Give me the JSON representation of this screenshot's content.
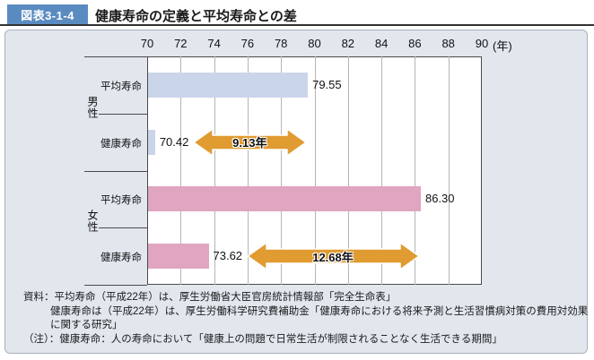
{
  "header": {
    "figure_label": "図表3-1-4",
    "title": "健康寿命の定義と平均寿命との差"
  },
  "colors": {
    "title_box_bg": "#5a8bc0",
    "header_rule": "#333333",
    "panel_bg": "#e2e7ee",
    "panel_border": "#a9b1bb",
    "plot_bg": "#ffffff",
    "plot_border": "#4a4a4a",
    "gridline": "#b5b5b5"
  },
  "chart_data": {
    "type": "bar",
    "orientation": "horizontal",
    "title": "健康寿命の定義と平均寿命との差",
    "axis": {
      "min": 70,
      "max": 90,
      "step": 2,
      "tick_labels": [
        "70",
        "72",
        "74",
        "76",
        "78",
        "80",
        "82",
        "84",
        "86",
        "88",
        "90"
      ],
      "unit_label": "(年)"
    },
    "grid": true,
    "arrow_color": "#e09b31",
    "groups": [
      {
        "id": "male",
        "name": "男性",
        "bar_color": "#cbd5ea",
        "bars": [
          {
            "id": "average-lifespan",
            "label": "平均寿命",
            "value": 79.55,
            "value_label": "79.55"
          },
          {
            "id": "healthy-lifespan",
            "label": "健康寿命",
            "value": 70.42,
            "value_label": "70.42"
          }
        ],
        "gap": {
          "label": "9.13年",
          "from": 70.42,
          "to": 79.55
        }
      },
      {
        "id": "female",
        "name": "女性",
        "bar_color": "#dfa5c1",
        "bars": [
          {
            "id": "average-lifespan",
            "label": "平均寿命",
            "value": 86.3,
            "value_label": "86.30"
          },
          {
            "id": "healthy-lifespan",
            "label": "健康寿命",
            "value": 73.62,
            "value_label": "73.62"
          }
        ],
        "gap": {
          "label": "12.68年",
          "from": 73.62,
          "to": 86.3
        }
      }
    ]
  },
  "notes": {
    "lines": [
      {
        "text": "資料：平均寿命（平成22年）は、厚生労働省大臣官房統計情報部「完全生命表」",
        "indent": false
      },
      {
        "text": "健康寿命は（平成22年）は、厚生労働科学研究費補助金「健康寿命における将来予測と生活習慣病対策の費用対効果",
        "indent": true
      },
      {
        "text": "に関する研究」",
        "indent": true
      },
      {
        "text": "（注）：健康寿命：人の寿命において「健康上の問題で日常生活が制限されることなく生活できる期間」",
        "indent": false
      }
    ]
  }
}
